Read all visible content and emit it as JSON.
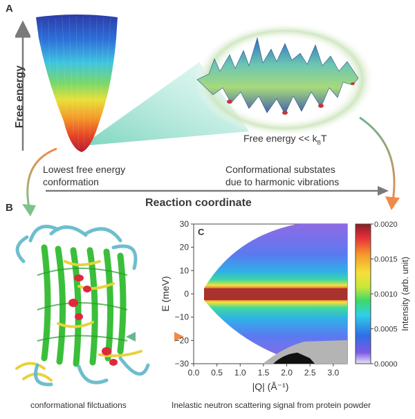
{
  "panels": {
    "a": "A",
    "b": "B",
    "c": "C"
  },
  "axes": {
    "free_energy": "Free energy",
    "reaction_coordinate": "Reaction coordinate"
  },
  "labels": {
    "lowest_line1": "Lowest free energy",
    "lowest_line2": "conformation",
    "substates_line1": "Conformational substates",
    "substates_line2": "due to harmonic vibrations",
    "free_energy_kbt": "Free energy << k",
    "kb_sub": "B",
    "kbt_T": "T"
  },
  "captions": {
    "protein": "conformational filctuations",
    "neutron": "Inelastic neutron scattering signal from protein powder"
  },
  "colors": {
    "text": "#333333",
    "axis_arrow": "#7a7a7a",
    "arrow_orange": "#f08a4b",
    "arrow_green": "#6bb58f",
    "cone_beam": "#8fdccb",
    "glow": "#d9ead0",
    "substrate_surface": "#5fb59a",
    "protein_green": "#3bbf3b",
    "protein_cyan": "#5fb8c8",
    "protein_yellow": "#e8d23a",
    "protein_red": "#e0283c",
    "elastic_band": "#a8322e"
  },
  "chart_data": {
    "type": "heatmap",
    "title": "",
    "xlabel": "|Q| (Å⁻¹)",
    "ylabel": "E (meV)",
    "xlim": [
      0,
      3.3
    ],
    "ylim": [
      -30,
      30
    ],
    "xticks": [
      0,
      0.5,
      1,
      1.5,
      2,
      2.5,
      3
    ],
    "xtick_labels": [
      "0.0",
      "0.5",
      "1.0",
      "1.5",
      "2.0",
      "2.5",
      "3.0"
    ],
    "yticks": [
      30,
      20,
      10,
      0,
      -10,
      -20,
      -30
    ],
    "ytick_labels": [
      "30",
      "20",
      "10",
      "0",
      "−10",
      "−20",
      "−30"
    ],
    "colorbar": {
      "label": "Intensity (arb. unit)",
      "range": [
        0.0,
        0.002
      ],
      "ticks": [
        0.0,
        0.0005,
        0.001,
        0.0015,
        0.002
      ],
      "tick_labels": [
        "0.0000",
        "0.0005",
        "0.0010",
        "0.0015",
        "0.0020"
      ]
    },
    "description": "Elastic peak at E=0 with maximum intensity; intensity decreases with |E|; accessible kinematic region widens with |Q| starting near |Q|=0.25"
  }
}
